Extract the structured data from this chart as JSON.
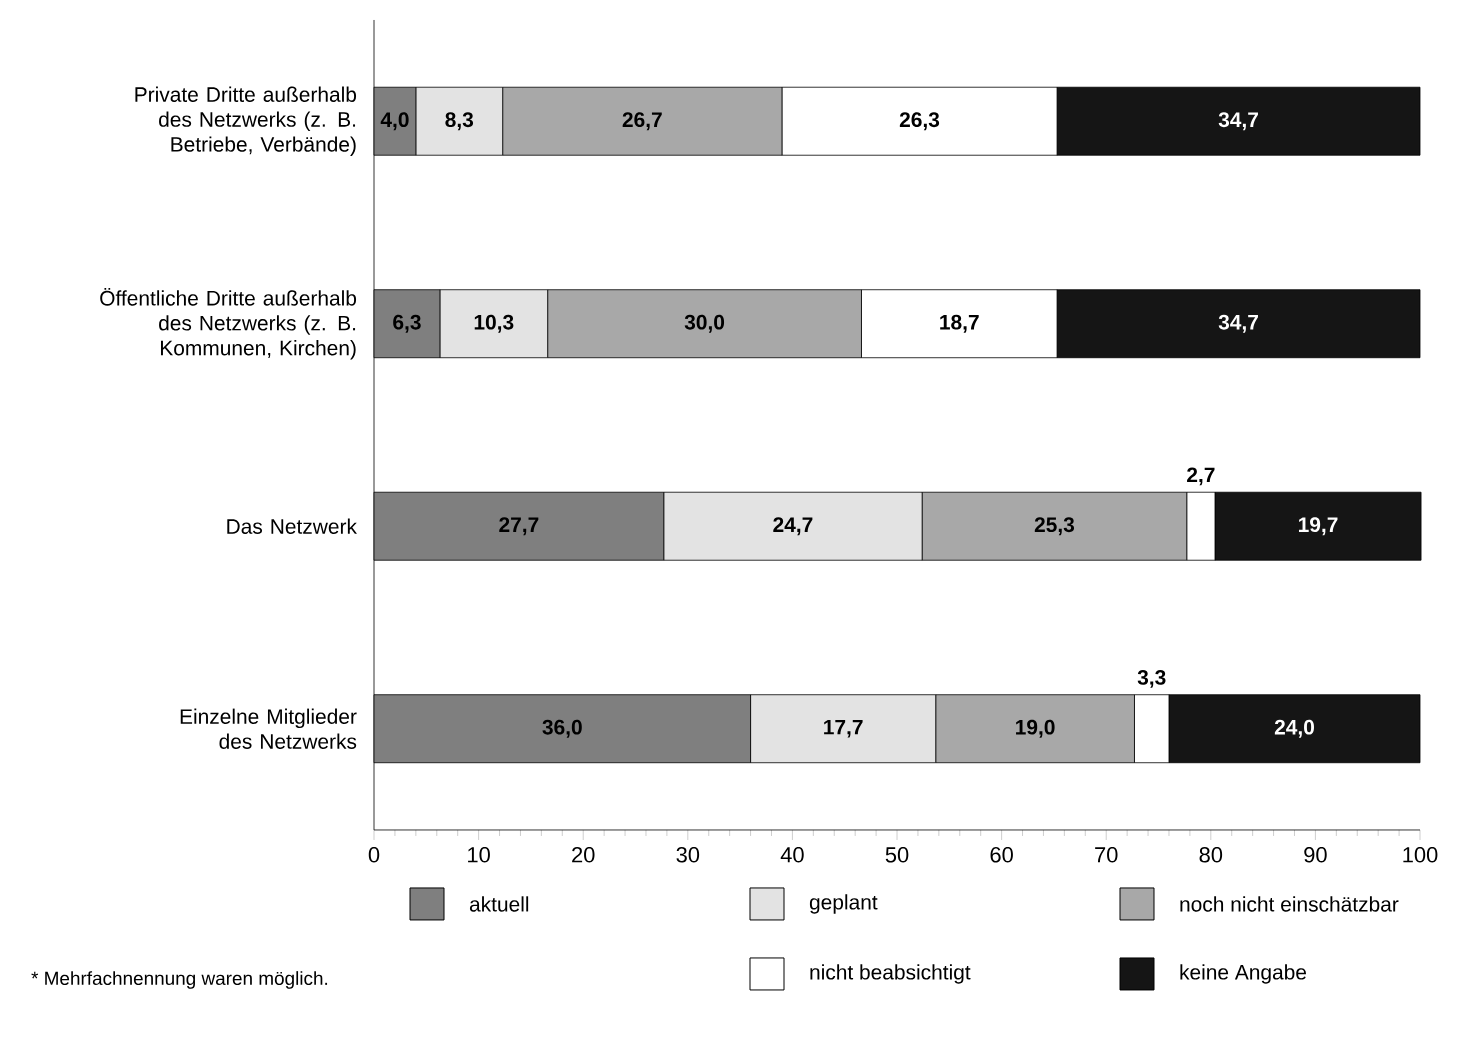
{
  "chart_data": {
    "type": "bar",
    "orientation": "horizontal",
    "stacked": true,
    "categories": [
      "Private Dritte außerhalb des Netzwerks (z. B. Betriebe, Verbände)",
      "Öffentliche Dritte außerhalb des Netzwerks (z. B. Kommunen, Kirchen)",
      "Das Netzwerk",
      "Einzelne Mitglieder des Netzwerks"
    ],
    "series": [
      {
        "name": "aktuell",
        "color": "#7f7f7f",
        "values": [
          4.0,
          6.3,
          27.7,
          36.0
        ],
        "value_labels": [
          "4,0",
          "6,3",
          "27,7",
          "36,0"
        ]
      },
      {
        "name": "geplant",
        "color": "#e3e3e3",
        "values": [
          8.3,
          10.3,
          24.7,
          17.7
        ],
        "value_labels": [
          "8,3",
          "10,3",
          "24,7",
          "17,7"
        ]
      },
      {
        "name": "noch nicht einschätzbar",
        "color": "#a8a8a8",
        "values": [
          26.7,
          30.0,
          25.3,
          19.0
        ],
        "value_labels": [
          "26,7",
          "30,0",
          "25,3",
          "19,0"
        ]
      },
      {
        "name": "nicht beabsichtigt",
        "color": "#ffffff",
        "values": [
          26.3,
          18.7,
          2.7,
          3.3
        ],
        "value_labels": [
          "26,3",
          "18,7",
          "2,7",
          "3,3"
        ]
      },
      {
        "name": "keine Angabe",
        "color": "#151515",
        "values": [
          34.7,
          34.7,
          19.7,
          24.0
        ],
        "value_labels": [
          "34,7",
          "34,7",
          "19,7",
          "24,0"
        ]
      }
    ],
    "xlim": [
      0,
      100
    ],
    "xticks": [
      0,
      10,
      20,
      30,
      40,
      50,
      60,
      70,
      80,
      90,
      100
    ],
    "legend": "bottom",
    "grid": false,
    "annotations": [
      "* Mehrfachnennung waren möglich."
    ]
  }
}
